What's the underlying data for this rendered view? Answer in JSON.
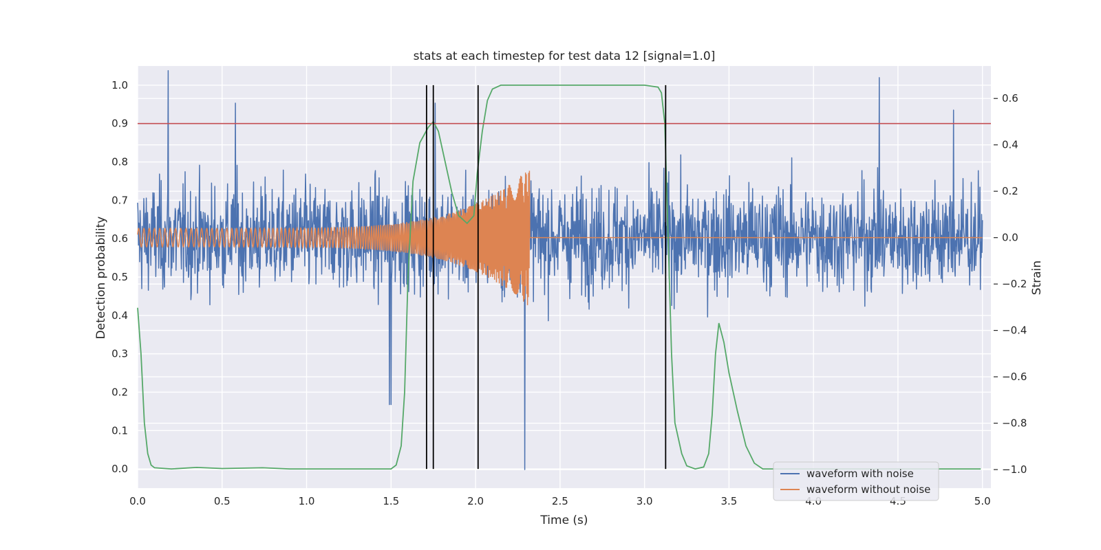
{
  "chart_data": {
    "type": "line",
    "title": "stats at each timestep for test data 12 [signal=1.0]",
    "xlabel": "Time (s)",
    "ylabel_left": "Detection probability",
    "ylabel_right": "Strain",
    "xlim": [
      0.0,
      5.05
    ],
    "ylim_left": [
      -0.05,
      1.05
    ],
    "ylim_right": [
      -1.08,
      0.74
    ],
    "x_ticks": [
      "0.0",
      "0.5",
      "1.0",
      "1.5",
      "2.0",
      "2.5",
      "3.0",
      "3.5",
      "4.0",
      "4.5",
      "5.0"
    ],
    "y_left_ticks": [
      "0.0",
      "0.1",
      "0.2",
      "0.3",
      "0.4",
      "0.5",
      "0.6",
      "0.7",
      "0.8",
      "0.9",
      "1.0"
    ],
    "y_right_ticks": [
      "−1.0",
      "−0.8",
      "−0.6",
      "−0.4",
      "−0.2",
      "0.0",
      "0.2",
      "0.4",
      "0.6"
    ],
    "grid": true,
    "legend_position": "lower-right",
    "threshold": {
      "y": 0.9,
      "color": "#c44e52"
    },
    "vertical_markers": {
      "x": [
        1.71,
        1.75,
        2.015,
        3.125
      ],
      "ymin": 0.0,
      "ymax": 1.0,
      "color": "#000000"
    },
    "series": [
      {
        "name": "waveform with noise",
        "axis": "right",
        "color": "#4c72b0",
        "note_kind": "noise",
        "x_range": [
          0.0,
          5.0
        ],
        "spikes": [
          {
            "x": 0.18,
            "y": 0.72
          },
          {
            "x": 1.5,
            "y": -0.72
          },
          {
            "x": 1.49,
            "y": -0.72
          },
          {
            "x": 2.29,
            "y": -1.0
          },
          {
            "x": 4.39,
            "y": 0.69
          },
          {
            "x": 4.83,
            "y": 0.55
          },
          {
            "x": 0.58,
            "y": 0.58
          },
          {
            "x": 1.76,
            "y": 0.58
          }
        ],
        "amplitude_range": [
          -0.55,
          0.55
        ]
      },
      {
        "name": "waveform without noise",
        "axis": "right",
        "color": "#dd8452",
        "x_range": [
          0.0,
          5.0
        ],
        "chirp_start": 0.0,
        "chirp_end": 2.32,
        "start_amplitude": 0.04,
        "end_amplitude": 0.3,
        "end_value_after": 0.0
      },
      {
        "name": "detection probability",
        "axis": "left",
        "color": "#55a868",
        "points": [
          [
            0.0,
            0.42
          ],
          [
            0.02,
            0.3
          ],
          [
            0.04,
            0.12
          ],
          [
            0.06,
            0.04
          ],
          [
            0.08,
            0.01
          ],
          [
            0.1,
            0.003
          ],
          [
            0.2,
            0.0
          ],
          [
            0.35,
            0.004
          ],
          [
            0.5,
            0.001
          ],
          [
            0.74,
            0.003
          ],
          [
            0.9,
            0.0
          ],
          [
            1.3,
            0.0
          ],
          [
            1.5,
            0.0
          ],
          [
            1.53,
            0.01
          ],
          [
            1.56,
            0.06
          ],
          [
            1.58,
            0.2
          ],
          [
            1.6,
            0.5
          ],
          [
            1.63,
            0.75
          ],
          [
            1.67,
            0.85
          ],
          [
            1.72,
            0.89
          ],
          [
            1.75,
            0.905
          ],
          [
            1.78,
            0.88
          ],
          [
            1.82,
            0.8
          ],
          [
            1.86,
            0.72
          ],
          [
            1.9,
            0.66
          ],
          [
            1.95,
            0.64
          ],
          [
            1.99,
            0.66
          ],
          [
            2.01,
            0.77
          ],
          [
            2.04,
            0.88
          ],
          [
            2.07,
            0.96
          ],
          [
            2.1,
            0.99
          ],
          [
            2.15,
            1.0
          ],
          [
            2.5,
            1.0
          ],
          [
            3.0,
            1.0
          ],
          [
            3.08,
            0.995
          ],
          [
            3.1,
            0.98
          ],
          [
            3.12,
            0.9
          ],
          [
            3.14,
            0.6
          ],
          [
            3.16,
            0.3
          ],
          [
            3.18,
            0.12
          ],
          [
            3.22,
            0.04
          ],
          [
            3.25,
            0.008
          ],
          [
            3.3,
            0.0
          ],
          [
            3.35,
            0.005
          ],
          [
            3.38,
            0.04
          ],
          [
            3.4,
            0.14
          ],
          [
            3.42,
            0.3
          ],
          [
            3.44,
            0.38
          ],
          [
            3.47,
            0.33
          ],
          [
            3.5,
            0.25
          ],
          [
            3.55,
            0.15
          ],
          [
            3.6,
            0.06
          ],
          [
            3.65,
            0.015
          ],
          [
            3.7,
            0.0
          ],
          [
            4.0,
            0.0
          ],
          [
            4.5,
            0.0
          ],
          [
            4.99,
            0.0
          ]
        ]
      }
    ]
  }
}
